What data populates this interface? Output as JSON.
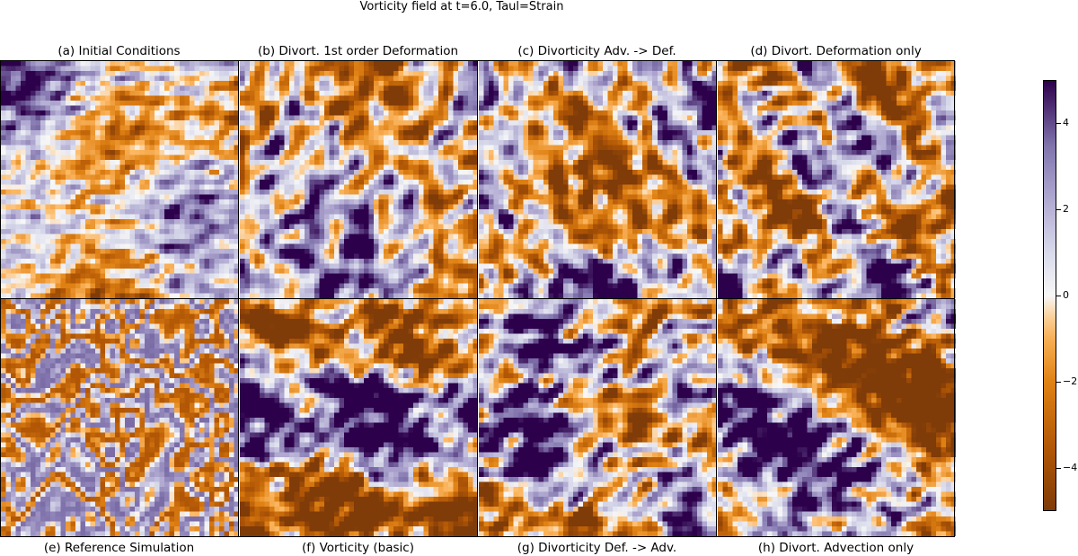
{
  "figure": {
    "suptitle": "Vorticity field at t=6.0, Taul=Strain"
  },
  "chart_data": {
    "type": "heatmap",
    "title": "Vorticity field at t=6.0, Taul=Strain",
    "colormap": "PuOr",
    "vmin": -5,
    "vmax": 5,
    "colors": {
      "low": "#7f3b08",
      "mid": "#f7f7f7",
      "high": "#2d004b"
    },
    "panels": [
      {
        "id": "a",
        "title": "(a) Initial Conditions",
        "title_position": "top",
        "texture": "fine-noise"
      },
      {
        "id": "b",
        "title": "(b) Divort. 1st order Deformation",
        "title_position": "top",
        "texture": "turbulent"
      },
      {
        "id": "c",
        "title": "(c) Divorticity Adv. -> Def.",
        "title_position": "top",
        "texture": "turbulent"
      },
      {
        "id": "d",
        "title": "(d) Divort. Deformation only",
        "title_position": "top",
        "texture": "turbulent"
      },
      {
        "id": "e",
        "title": "(e) Reference Simulation",
        "title_position": "bottom",
        "texture": "smooth-filaments"
      },
      {
        "id": "f",
        "title": "(f) Vorticity (basic)",
        "title_position": "bottom",
        "texture": "turbulent"
      },
      {
        "id": "g",
        "title": "(g) Divorticity Def. -> Adv.",
        "title_position": "bottom",
        "texture": "turbulent"
      },
      {
        "id": "h",
        "title": "(h) Divort. Advection only",
        "title_position": "bottom",
        "texture": "turbulent"
      }
    ],
    "colorbar": {
      "ticks": [
        4,
        2,
        0,
        -2,
        -4
      ],
      "tick_labels": [
        "4",
        "2",
        "0",
        "−2",
        "−4"
      ],
      "range": [
        -5,
        5
      ]
    }
  }
}
